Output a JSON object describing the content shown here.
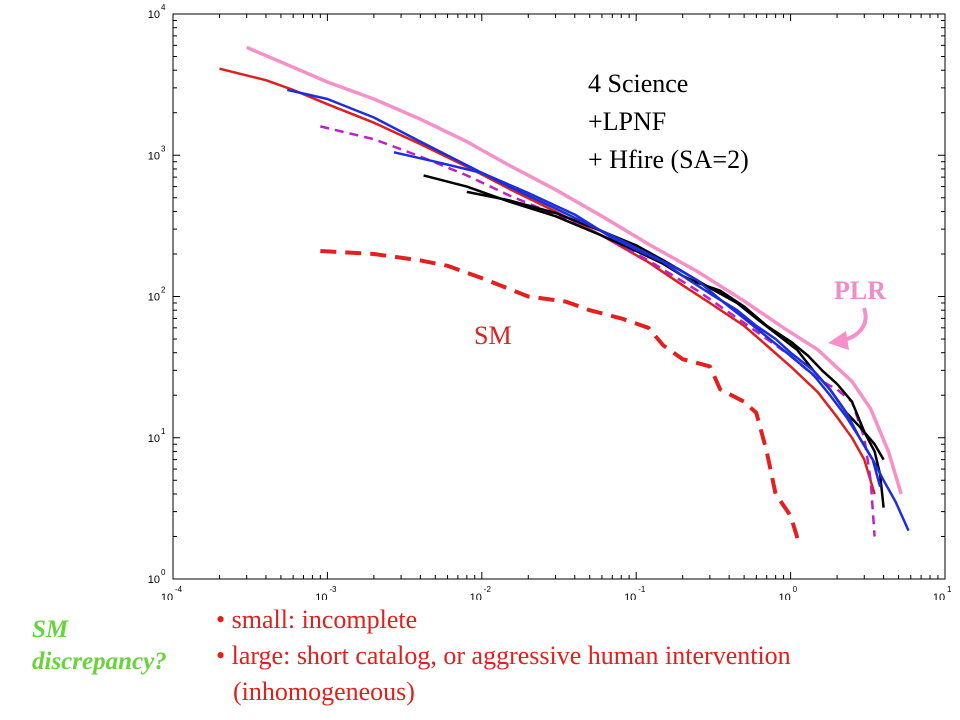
{
  "chart_data": {
    "type": "line",
    "xscale": "log",
    "yscale": "log",
    "xlim": [
      0.0001,
      10
    ],
    "ylim": [
      1,
      10000
    ],
    "x_ticks": [
      {
        "base": "10",
        "exp": "-4"
      },
      {
        "base": "10",
        "exp": "-3"
      },
      {
        "base": "10",
        "exp": "-2"
      },
      {
        "base": "10",
        "exp": "-1"
      },
      {
        "base": "10",
        "exp": "0"
      },
      {
        "base": "10",
        "exp": "1"
      }
    ],
    "y_ticks": [
      {
        "base": "10",
        "exp": "0"
      },
      {
        "base": "10",
        "exp": "1"
      },
      {
        "base": "10",
        "exp": "2"
      },
      {
        "base": "10",
        "exp": "3"
      },
      {
        "base": "10",
        "exp": "4"
      }
    ],
    "grid": false,
    "title": "",
    "xlabel": "",
    "ylabel": "",
    "annotations": [
      {
        "lines": [
          "4 Science",
          "+LPNF",
          "+ Hfire (SA=2)"
        ],
        "x": 0.3,
        "y": 3500
      },
      {
        "text": "SM",
        "x": 0.078,
        "y": 58
      },
      {
        "text": "PLR",
        "x": 2.0,
        "y": 110
      }
    ],
    "series": [
      {
        "color": "#f590c8",
        "width": 3.5,
        "dash": "",
        "points": [
          [
            0.0003,
            5800
          ],
          [
            0.0006,
            4200
          ],
          [
            0.001,
            3300
          ],
          [
            0.002,
            2500
          ],
          [
            0.004,
            1800
          ],
          [
            0.008,
            1250
          ],
          [
            0.015,
            850
          ],
          [
            0.03,
            570
          ],
          [
            0.06,
            370
          ],
          [
            0.12,
            235
          ],
          [
            0.25,
            150
          ],
          [
            0.5,
            93
          ],
          [
            0.9,
            60
          ],
          [
            1.5,
            42
          ],
          [
            2.5,
            25
          ],
          [
            3.3,
            16
          ],
          [
            4.3,
            8
          ],
          [
            5.2,
            4
          ]
        ]
      },
      {
        "color": "#dd1f1f",
        "width": 2.5,
        "dash": "",
        "points": [
          [
            0.0002,
            4100
          ],
          [
            0.0004,
            3400
          ],
          [
            0.0006,
            2900
          ],
          [
            0.001,
            2300
          ],
          [
            0.002,
            1700
          ],
          [
            0.004,
            1200
          ],
          [
            0.008,
            830
          ],
          [
            0.015,
            580
          ],
          [
            0.03,
            400
          ],
          [
            0.06,
            270
          ],
          [
            0.12,
            175
          ],
          [
            0.2,
            120
          ],
          [
            0.3,
            90
          ],
          [
            0.5,
            62
          ],
          [
            0.7,
            45
          ],
          [
            1.0,
            32
          ],
          [
            1.5,
            21
          ],
          [
            2.0,
            14
          ],
          [
            2.5,
            10
          ],
          [
            3.0,
            7
          ],
          [
            3.5,
            4
          ]
        ]
      },
      {
        "color": "#c020c8",
        "width": 2.5,
        "dash": "9,6",
        "points": [
          [
            0.0009,
            1600
          ],
          [
            0.002,
            1300
          ],
          [
            0.004,
            980
          ],
          [
            0.008,
            720
          ],
          [
            0.015,
            520
          ],
          [
            0.03,
            380
          ],
          [
            0.06,
            270
          ],
          [
            0.12,
            180
          ],
          [
            0.25,
            110
          ],
          [
            0.5,
            65
          ],
          [
            1.0,
            38
          ],
          [
            1.5,
            26
          ],
          [
            2.0,
            22
          ],
          [
            2.5,
            18
          ],
          [
            3.0,
            10
          ],
          [
            3.3,
            5
          ],
          [
            3.5,
            2
          ]
        ]
      },
      {
        "color": "#000000",
        "width": 2.5,
        "dash": "",
        "points": [
          [
            0.0042,
            720
          ],
          [
            0.008,
            600
          ],
          [
            0.015,
            470
          ],
          [
            0.03,
            370
          ],
          [
            0.06,
            270
          ],
          [
            0.1,
            210
          ],
          [
            0.15,
            170
          ],
          [
            0.2,
            140
          ],
          [
            0.25,
            125
          ],
          [
            0.35,
            110
          ],
          [
            0.5,
            85
          ],
          [
            0.7,
            62
          ],
          [
            1.0,
            48
          ],
          [
            1.3,
            38
          ],
          [
            1.6,
            30
          ],
          [
            2.0,
            24
          ],
          [
            2.5,
            18
          ],
          [
            3.0,
            11
          ],
          [
            3.5,
            8
          ],
          [
            3.8,
            5.5
          ],
          [
            4.0,
            3.2
          ]
        ]
      },
      {
        "color": "#000000",
        "width": 2.5,
        "dash": "",
        "points": [
          [
            0.008,
            550
          ],
          [
            0.015,
            480
          ],
          [
            0.03,
            390
          ],
          [
            0.06,
            290
          ],
          [
            0.1,
            230
          ],
          [
            0.15,
            180
          ],
          [
            0.2,
            150
          ],
          [
            0.3,
            115
          ],
          [
            0.45,
            90
          ],
          [
            0.6,
            70
          ],
          [
            0.8,
            55
          ],
          [
            1.1,
            42
          ],
          [
            1.4,
            30
          ],
          [
            1.8,
            22
          ],
          [
            2.3,
            15
          ],
          [
            2.8,
            12
          ],
          [
            3.5,
            9
          ],
          [
            4.0,
            7
          ]
        ]
      },
      {
        "color": "#1d2fdb",
        "width": 2.5,
        "dash": "",
        "points": [
          [
            0.00055,
            2900
          ],
          [
            0.001,
            2500
          ],
          [
            0.002,
            1850
          ],
          [
            0.004,
            1250
          ],
          [
            0.008,
            850
          ],
          [
            0.015,
            600
          ],
          [
            0.03,
            420
          ],
          [
            0.05,
            320
          ],
          [
            0.08,
            250
          ],
          [
            0.12,
            200
          ],
          [
            0.18,
            160
          ],
          [
            0.25,
            130
          ],
          [
            0.35,
            95
          ],
          [
            0.5,
            70
          ],
          [
            0.7,
            52
          ],
          [
            1.0,
            38
          ],
          [
            1.4,
            28
          ],
          [
            1.8,
            20
          ],
          [
            2.3,
            14
          ],
          [
            2.8,
            10
          ],
          [
            3.4,
            7
          ],
          [
            4.0,
            5
          ],
          [
            4.8,
            3.5
          ],
          [
            5.8,
            2.2
          ]
        ]
      },
      {
        "color": "#1d2fdb",
        "width": 2.5,
        "dash": "",
        "points": [
          [
            0.0027,
            1050
          ],
          [
            0.005,
            900
          ],
          [
            0.01,
            750
          ],
          [
            0.02,
            540
          ],
          [
            0.04,
            380
          ],
          [
            0.07,
            260
          ],
          [
            0.1,
            215
          ],
          [
            0.15,
            175
          ],
          [
            0.2,
            140
          ],
          [
            0.3,
            105
          ],
          [
            0.45,
            80
          ],
          [
            0.6,
            62
          ],
          [
            0.8,
            50
          ],
          [
            1.0,
            40
          ],
          [
            1.4,
            30
          ],
          [
            1.8,
            22
          ],
          [
            2.3,
            15
          ],
          [
            2.8,
            10
          ],
          [
            3.4,
            7
          ],
          [
            3.8,
            4.5
          ]
        ]
      },
      {
        "color": "#e32020",
        "width": 4,
        "dash": "16,9",
        "points": [
          [
            0.0009,
            210
          ],
          [
            0.002,
            200
          ],
          [
            0.004,
            180
          ],
          [
            0.006,
            165
          ],
          [
            0.01,
            135
          ],
          [
            0.02,
            100
          ],
          [
            0.035,
            92
          ],
          [
            0.05,
            80
          ],
          [
            0.08,
            70
          ],
          [
            0.12,
            60
          ],
          [
            0.15,
            45
          ],
          [
            0.2,
            36
          ],
          [
            0.3,
            32
          ],
          [
            0.35,
            22
          ],
          [
            0.5,
            18
          ],
          [
            0.6,
            15
          ],
          [
            0.7,
            8
          ],
          [
            0.8,
            4
          ],
          [
            1.0,
            2.8
          ],
          [
            1.15,
            1.7
          ]
        ]
      }
    ]
  },
  "side_note": {
    "line1": "SM",
    "line2": "discrepancy?"
  },
  "bullets": [
    "• small: incomplete",
    "• large: short catalog, or aggressive human intervention",
    "(inhomogeneous)"
  ]
}
